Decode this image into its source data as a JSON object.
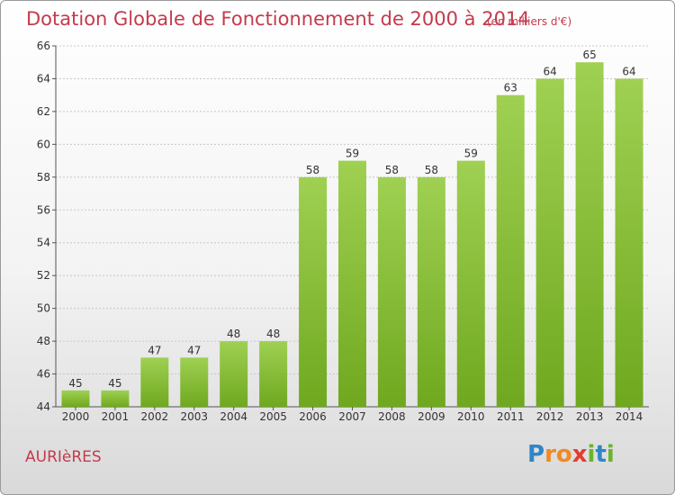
{
  "chart_data": {
    "type": "bar",
    "title": "Dotation Globale de Fonctionnement de 2000 à 2014",
    "subtitle": "(en milliers d'€)",
    "categories": [
      "2000",
      "2001",
      "2002",
      "2003",
      "2004",
      "2005",
      "2006",
      "2007",
      "2008",
      "2009",
      "2010",
      "2011",
      "2012",
      "2013",
      "2014"
    ],
    "values": [
      45,
      45,
      47,
      47,
      48,
      48,
      58,
      59,
      58,
      58,
      59,
      63,
      64,
      65,
      64
    ],
    "ylim": [
      44,
      66
    ],
    "yticks": [
      44,
      46,
      48,
      50,
      52,
      54,
      56,
      58,
      60,
      62,
      64,
      66
    ],
    "grid": true,
    "colors": {
      "bar_light": "#9fd052",
      "bar_dark": "#6fa81f",
      "text": "#333333",
      "title": "#c43a4c"
    }
  },
  "commune": "AURIèRES",
  "logo": {
    "letters": [
      "P",
      "r",
      "o",
      "x",
      "i",
      "t",
      "i"
    ],
    "colors": [
      "#2f86c6",
      "#f08a24",
      "#f08a24",
      "#e83a30",
      "#6ab42d",
      "#2f86c6",
      "#6ab42d"
    ]
  }
}
